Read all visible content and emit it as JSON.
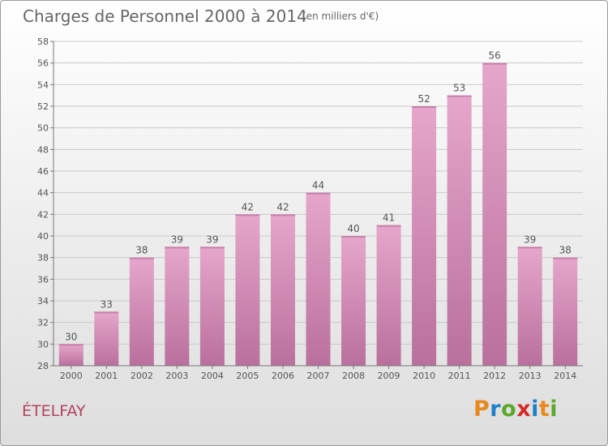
{
  "header": {
    "title": "Charges de Personnel 2000 à 2014",
    "subtitle": "(en milliers d'€)"
  },
  "footer": {
    "commune": "ÉTELFAY",
    "logo": {
      "text": "Proxiti",
      "colors": [
        "#e8891e",
        "#1e80c8",
        "#5aa82c",
        "#d62a2a",
        "#1e80c8",
        "#e8891e",
        "#5aa82c"
      ]
    }
  },
  "colors": {
    "bar_fill": "#d28fb6",
    "bar_side": "#b96f9a",
    "commune_text": "#b2435f",
    "text": "#555555"
  },
  "chart_data": {
    "type": "bar",
    "title": "Charges de Personnel 2000 à 2014",
    "subtitle": "(en milliers d'€)",
    "categories": [
      "2000",
      "2001",
      "2002",
      "2003",
      "2004",
      "2005",
      "2006",
      "2007",
      "2008",
      "2009",
      "2010",
      "2011",
      "2012",
      "2013",
      "2014"
    ],
    "values": [
      30,
      33,
      38,
      39,
      39,
      42,
      42,
      44,
      40,
      41,
      52,
      53,
      56,
      39,
      38
    ],
    "ylim": [
      28,
      58
    ],
    "yticks": [
      28,
      30,
      32,
      34,
      36,
      38,
      40,
      42,
      44,
      46,
      48,
      50,
      52,
      54,
      56,
      58
    ],
    "grid": true,
    "legend": "none"
  }
}
